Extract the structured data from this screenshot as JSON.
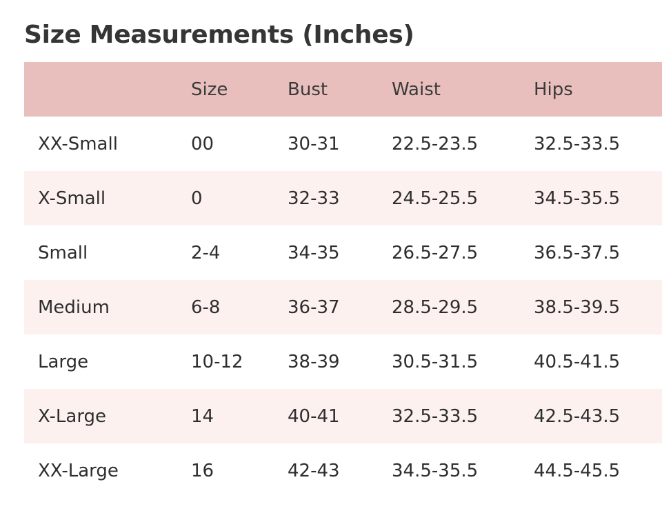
{
  "title": "Size Measurements (Inches)",
  "table": {
    "headers": [
      "",
      "Size",
      "Bust",
      "Waist",
      "Hips"
    ],
    "rows": [
      [
        "XX-Small",
        "00",
        "30-31",
        "22.5-23.5",
        "32.5-33.5"
      ],
      [
        "X-Small",
        "0",
        "32-33",
        "24.5-25.5",
        "34.5-35.5"
      ],
      [
        "Small",
        "2-4",
        "34-35",
        "26.5-27.5",
        "36.5-37.5"
      ],
      [
        "Medium",
        "6-8",
        "36-37",
        "28.5-29.5",
        "38.5-39.5"
      ],
      [
        "Large",
        "10-12",
        "38-39",
        "30.5-31.5",
        "40.5-41.5"
      ],
      [
        "X-Large",
        "14",
        "40-41",
        "32.5-33.5",
        "42.5-43.5"
      ],
      [
        "XX-Large",
        "16",
        "42-43",
        "34.5-35.5",
        "44.5-45.5"
      ]
    ]
  },
  "colors": {
    "header_bg": "#e8bfbd",
    "stripe_bg": "#fdf1f0",
    "text": "#2e2e2e"
  }
}
